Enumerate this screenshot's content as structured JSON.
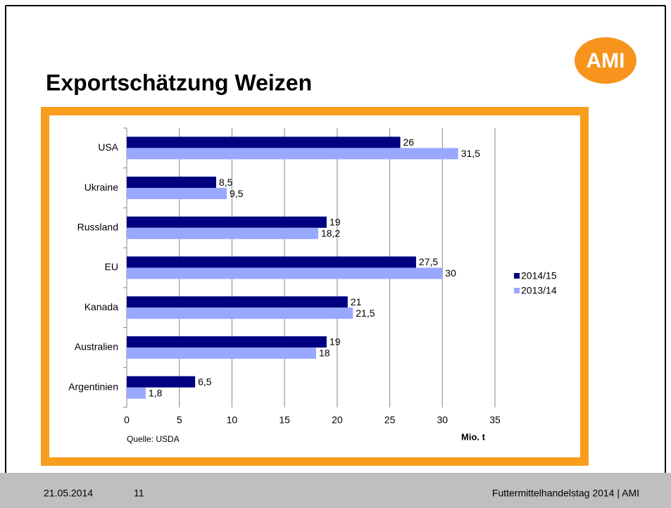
{
  "slide": {
    "title": "Exportschätzung Weizen",
    "logo": "AMI"
  },
  "chart_data": {
    "type": "bar",
    "orientation": "horizontal",
    "categories": [
      "USA",
      "Ukraine",
      "Russland",
      "EU",
      "Kanada",
      "Australien",
      "Argentinien"
    ],
    "series": [
      {
        "name": "2014/15",
        "color": "#000080",
        "values": [
          26,
          8.5,
          19,
          27.5,
          21,
          19,
          6.5
        ],
        "value_labels": [
          "26",
          "8,5",
          "19",
          "27,5",
          "21",
          "19",
          "6,5"
        ]
      },
      {
        "name": "2013/14",
        "color": "#99a8ff",
        "values": [
          31.5,
          9.5,
          18.2,
          30,
          21.5,
          18,
          1.8
        ],
        "value_labels": [
          "31,5",
          "9,5",
          "18,2",
          "30",
          "21,5",
          "18",
          "1,8"
        ]
      }
    ],
    "xlim": [
      0,
      35
    ],
    "xticks": [
      0,
      5,
      10,
      15,
      20,
      25,
      30,
      35
    ],
    "grid": true,
    "x_axis_label": "Mio. t",
    "source": "Quelle: USDA",
    "legend": "right"
  },
  "footer": {
    "date": "21.05.2014",
    "page": "11",
    "text": "Futtermittelhandelstag 2014 | AMI"
  }
}
